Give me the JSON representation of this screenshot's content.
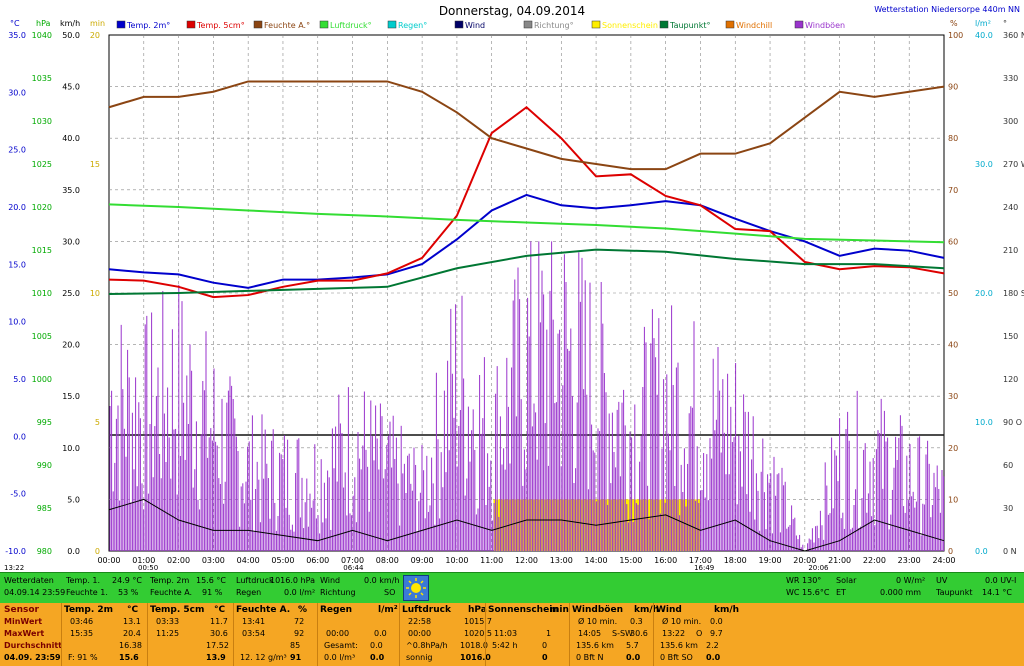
{
  "header": {
    "title": "Donnerstag, 04.09.2014",
    "station": "Wetterstation Niedersorpe 440m NN"
  },
  "axis_units": {
    "temp": "°C",
    "pressure": "hPa",
    "speed": "km/h",
    "minutes": "min",
    "percent": "%",
    "rain": "l/m²",
    "direction": "°"
  },
  "legend": [
    {
      "label": "Temp. 2m°",
      "color": "#0000cc"
    },
    {
      "label": "Temp. 5cm°",
      "color": "#dd0000"
    },
    {
      "label": "Feuchte A.°",
      "color": "#8b4513"
    },
    {
      "label": "Luftdruck°",
      "color": "#33dd33"
    },
    {
      "label": "Regen°",
      "color": "#00cccc"
    },
    {
      "label": "Wind",
      "color": "#000066"
    },
    {
      "label": "Richtung°",
      "color": "#888888"
    },
    {
      "label": "Sonnenschein",
      "color": "#ffee00"
    },
    {
      "label": "Taupunkt°",
      "color": "#007733"
    },
    {
      "label": "Windchill",
      "color": "#e07000"
    },
    {
      "label": "Windböen",
      "color": "#9933cc"
    }
  ],
  "chart_data": {
    "type": "line",
    "x_ticks": [
      "00:00",
      "01:00",
      "02:00",
      "03:00",
      "04:00",
      "05:00",
      "06:00",
      "07:00",
      "08:00",
      "09:00",
      "10:00",
      "11:00",
      "12:00",
      "13:00",
      "14:00",
      "15:00",
      "16:00",
      "17:00",
      "18:00",
      "19:00",
      "20:00",
      "21:00",
      "22:00",
      "23:00",
      "24:00"
    ],
    "axis_ticks": {
      "temp": [
        "35.0",
        "30.0",
        "25.0",
        "20.0",
        "15.0",
        "10.0",
        "5.0",
        "0.0",
        "-5.0",
        "-10.0"
      ],
      "pressure": [
        "1040",
        "1035",
        "1030",
        "1025",
        "1020",
        "1015",
        "1010",
        "1005",
        "1000",
        "995",
        "990",
        "985",
        "980"
      ],
      "speed": [
        "50.0",
        "45.0",
        "40.0",
        "35.0",
        "30.0",
        "25.0",
        "20.0",
        "15.0",
        "10.0",
        "5.0",
        "0.0"
      ],
      "minutes": [
        "20",
        "15",
        "10",
        "5",
        "0"
      ],
      "percent": [
        "100",
        "90",
        "80",
        "70",
        "60",
        "50",
        "40",
        "30",
        "20",
        "10",
        "0"
      ],
      "rain": [
        "40.0",
        "30.0",
        "20.0",
        "10.0",
        "0.0"
      ],
      "direction": [
        "360 N",
        "330",
        "300",
        "270 W",
        "240",
        "210",
        "180 S",
        "150",
        "120",
        "90 O",
        "60",
        "30",
        "0 N"
      ]
    },
    "ylim_speed": [
      0,
      50
    ],
    "ylim_temp": [
      -10,
      35
    ],
    "ylim_percent": [
      0,
      100
    ],
    "ylim_pressure": [
      980,
      1040
    ],
    "time_markers": [
      {
        "time": "13:22",
        "label": "13:22"
      },
      {
        "time": "00:50",
        "label": "00:50"
      },
      {
        "time": "06:44",
        "label": "06:44"
      },
      {
        "time": "16:49",
        "label": "16:49"
      },
      {
        "time": "20:06",
        "label": "20:06"
      }
    ],
    "series": [
      {
        "name": "Temp. 2m°",
        "axis": "speed",
        "x": [
          0,
          1,
          2,
          3,
          4,
          5,
          6,
          7,
          8,
          9,
          10,
          11,
          12,
          13,
          14,
          15,
          16,
          17,
          18,
          19,
          20,
          21,
          22,
          23,
          24
        ],
        "values": [
          27.3,
          27.0,
          26.8,
          26.0,
          25.5,
          26.3,
          26.3,
          26.5,
          26.8,
          27.8,
          30.2,
          33.0,
          34.5,
          33.5,
          33.2,
          33.5,
          33.9,
          33.5,
          32.2,
          31.0,
          30.0,
          28.6,
          29.3,
          29.1,
          28.4
        ]
      },
      {
        "name": "Temp. 5cm°",
        "axis": "speed",
        "x": [
          0,
          1,
          2,
          3,
          4,
          5,
          6,
          7,
          8,
          9,
          10,
          11,
          12,
          13,
          14,
          15,
          16,
          17,
          18,
          19,
          20,
          21,
          22,
          23,
          24
        ],
        "values": [
          26.3,
          26.2,
          25.6,
          24.6,
          24.8,
          25.6,
          26.2,
          26.2,
          26.9,
          28.4,
          32.5,
          40.5,
          43.0,
          40.0,
          36.3,
          36.5,
          34.4,
          33.5,
          31.2,
          31.0,
          28.0,
          27.3,
          27.6,
          27.5,
          26.9
        ]
      },
      {
        "name": "Feuchte A.°",
        "axis": "percent",
        "x": [
          0,
          1,
          2,
          3,
          4,
          5,
          6,
          7,
          8,
          9,
          10,
          11,
          12,
          13,
          14,
          15,
          16,
          17,
          18,
          19,
          20,
          21,
          22,
          23,
          24
        ],
        "values": [
          86,
          88,
          88,
          89,
          91,
          91,
          91,
          91,
          91,
          89,
          85,
          80,
          78,
          76,
          75,
          74,
          74,
          77,
          77,
          79,
          84,
          89,
          88,
          89,
          90
        ]
      },
      {
        "name": "Luftdruck°",
        "axis": "pressure",
        "x": [
          0,
          2,
          4,
          6,
          8,
          10,
          12,
          14,
          16,
          18,
          20,
          22,
          24
        ],
        "values": [
          1020.3,
          1020.0,
          1019.6,
          1019.2,
          1018.9,
          1018.5,
          1018.2,
          1017.9,
          1017.5,
          1016.9,
          1016.3,
          1016.1,
          1015.9
        ]
      },
      {
        "name": "Taupunkt°",
        "axis": "speed",
        "x": [
          0,
          2,
          4,
          6,
          8,
          10,
          12,
          14,
          16,
          18,
          20,
          22,
          24
        ],
        "values": [
          24.9,
          25.0,
          25.2,
          25.4,
          25.6,
          27.4,
          28.6,
          29.2,
          29.0,
          28.3,
          27.8,
          27.8,
          27.4
        ]
      },
      {
        "name": "Wind",
        "axis": "speed",
        "x": [
          0,
          1,
          2,
          3,
          4,
          5,
          6,
          7,
          8,
          9,
          10,
          11,
          12,
          13,
          14,
          15,
          16,
          17,
          18,
          19,
          20,
          21,
          22,
          23,
          24
        ],
        "values": [
          4,
          5,
          3,
          2,
          2,
          1.5,
          1,
          2,
          1,
          2,
          3,
          2,
          3,
          3,
          2.5,
          3,
          3.5,
          2,
          3,
          1,
          0,
          1,
          3,
          2,
          1
        ]
      },
      {
        "name": "Windböen",
        "axis": "speed",
        "x": [
          0,
          1,
          2,
          3,
          4,
          5,
          6,
          7,
          8,
          9,
          10,
          11,
          12,
          13,
          14,
          15,
          16,
          17,
          18,
          19,
          20,
          21,
          22,
          23,
          24
        ],
        "values": [
          22,
          20,
          24,
          18,
          12,
          11,
          11,
          16,
          12,
          9,
          25,
          16,
          28,
          30,
          24,
          18,
          22,
          20,
          18,
          11,
          0,
          13,
          14,
          11,
          8
        ]
      }
    ],
    "sunshine_period": [
      "11:03",
      "17:00"
    ]
  },
  "current": {
    "Wetterdaten": "Wetterdaten",
    "datetime": "04.09.14 23:59",
    "temp1_label": "Temp. 1.",
    "temp1": "24.9 °C",
    "feuchte1_label": "Feuchte 1.",
    "feuchte1": "53 %",
    "temp2m_label": "Temp. 2m",
    "temp2m": "15.6 °C",
    "feuchteA_label": "Feuchte A.",
    "feuchteA": "91 %",
    "luftdruck_label": "Luftdruck",
    "luftdruck": "1016.0 hPa",
    "regen_label": "Regen",
    "regen": "0.0 l/m²",
    "wind_label": "Wind",
    "wind": "0.0 km/h",
    "richtung_label": "Richtung",
    "richtung": "SO",
    "wr": "WR 130°",
    "wc": "WC 15.6°C",
    "solar_label": "Solar",
    "solar": "0 W/m²",
    "et_label": "ET",
    "et": "0.000 mm",
    "uv_label": "UV",
    "uv": "0.0 UV-I",
    "taupunkt_label": "Taupunkt",
    "taupunkt": "14.1 °C"
  },
  "stats": {
    "row_labels": [
      "Sensor",
      "MinWert",
      "MaxWert",
      "Durchschnitt",
      "04.09. 23:59"
    ],
    "temp2m": {
      "h": "Temp. 2m",
      "u": "°C",
      "min_t": "03:46",
      "min": "13.1",
      "max_t": "15:35",
      "max": "20.4",
      "avg": "16.38",
      "cur_l": "F: 91 %",
      "cur": "15.6"
    },
    "temp5cm": {
      "h": "Temp. 5cm",
      "u": "°C",
      "min_t": "03:33",
      "min": "11.7",
      "max_t": "11:25",
      "max": "30.6",
      "avg": "17.52",
      "cur": "13.9"
    },
    "feuchte": {
      "h": "Feuchte A.",
      "u": "%",
      "min_t": "13:41",
      "min": "72",
      "max_t": "03:54",
      "max": "92",
      "avg": "85",
      "cur_l": "12. 12 g/m³",
      "cur": "91"
    },
    "regen": {
      "h": "Regen",
      "u": "l/m²",
      "min_t": "",
      "min": "",
      "max_t": "00:00",
      "max": "0.0",
      "avg_l": "Gesamt:",
      "avg": "0.0",
      "cur_l": "0.0 l/m³",
      "cur": "0.0"
    },
    "luftdruck": {
      "h": "Luftdruck",
      "u": "hPa",
      "min_t": "22:58",
      "min": "1015.7",
      "max_t": "00:00",
      "max": "1020.5",
      "avg_l": "^0.8hPa/h",
      "avg": "1018.0",
      "cur_l": "sonnig",
      "cur": "1016.0"
    },
    "sonne": {
      "h": "Sonnenschein",
      "u": "min",
      "min_t": "",
      "min": "",
      "max_t": "11:03",
      "max": "1",
      "avg_l": "5:42 h",
      "avg": "0",
      "cur": "0"
    },
    "boeen": {
      "h": "Windböen",
      "u": "km/h",
      "min_t": "Ø 10 min.",
      "min": "0.3",
      "max_t": "14:05",
      "max_d": "S-SW",
      "max": "30.6",
      "avg_l": "135.6 km",
      "avg": "5.7",
      "cur_l": "0 Bft N",
      "cur": "0.0"
    },
    "wind": {
      "h": "Wind",
      "u": "km/h",
      "min_t": "Ø 10 min.",
      "min": "0.0",
      "max_t": "13:22",
      "max_d": "O",
      "max": "9.7",
      "avg_l": "135.6 km",
      "avg": "2.2",
      "cur_l": "0 Bft SO",
      "cur": "0.0"
    }
  }
}
